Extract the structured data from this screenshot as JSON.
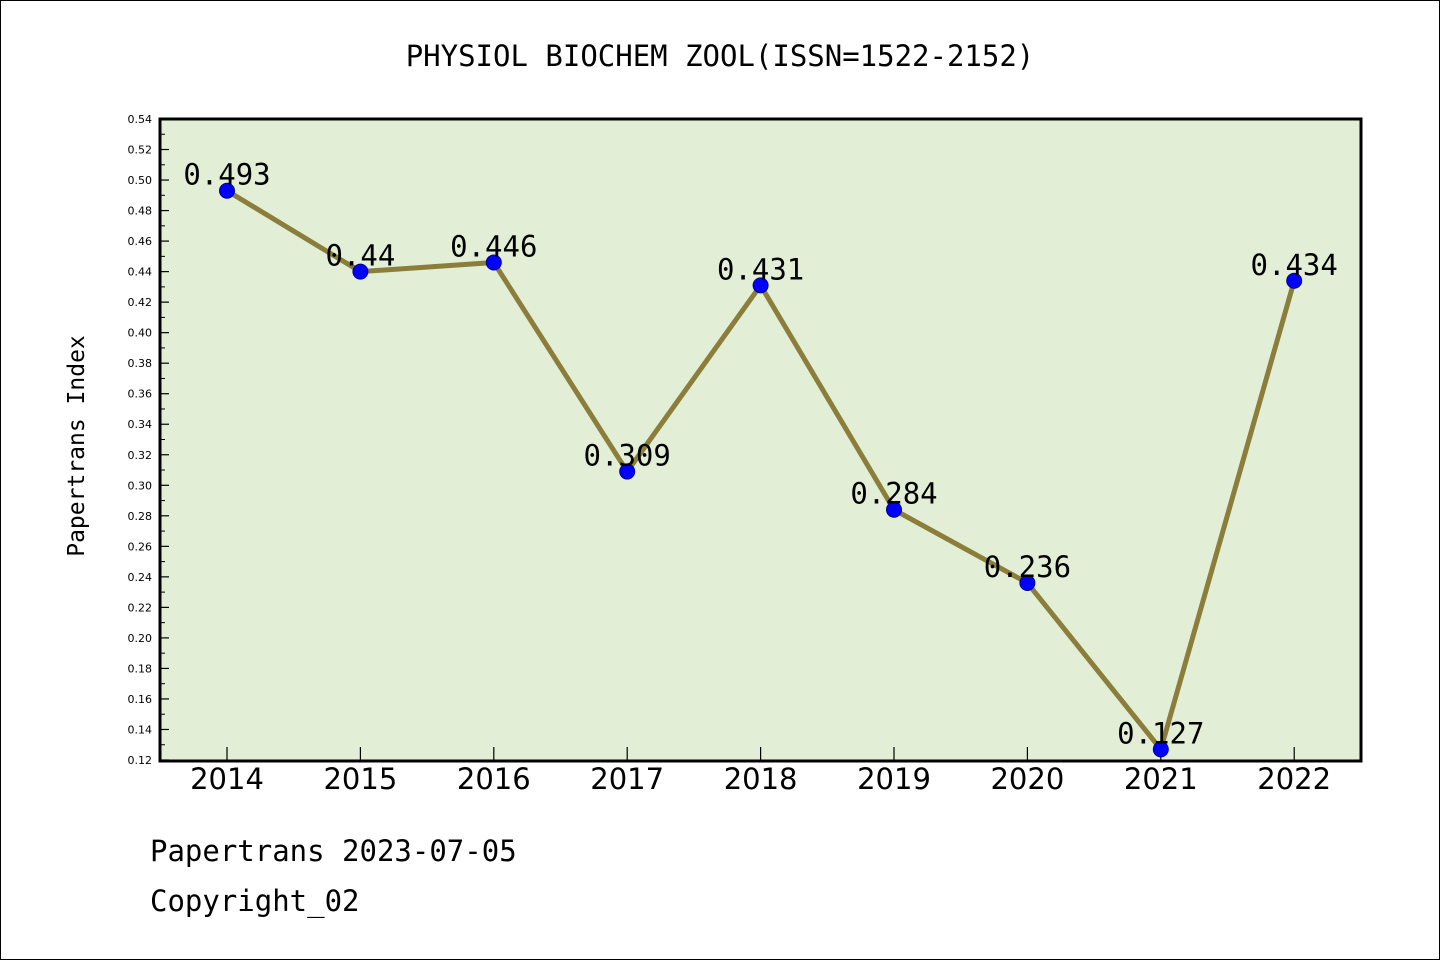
{
  "chart_data": {
    "type": "line",
    "title": "PHYSIOL BIOCHEM ZOOL(ISSN=1522-2152)",
    "xlabel": "",
    "ylabel": "Papertrans Index",
    "categories": [
      "2014",
      "2015",
      "2016",
      "2017",
      "2018",
      "2019",
      "2020",
      "2021",
      "2022"
    ],
    "values": [
      0.493,
      0.44,
      0.446,
      0.309,
      0.431,
      0.284,
      0.236,
      0.127,
      0.434
    ],
    "data_labels": [
      "0.493",
      "0.44",
      "0.446",
      "0.309",
      "0.431",
      "0.284",
      "0.236",
      "0.127",
      "0.434"
    ],
    "ylim": [
      0.12,
      0.54
    ],
    "yticks": [
      "0.12",
      "0.14",
      "0.16",
      "0.18",
      "0.20",
      "0.22",
      "0.24",
      "0.26",
      "0.28",
      "0.30",
      "0.32",
      "0.34",
      "0.36",
      "0.38",
      "0.40",
      "0.42",
      "0.44",
      "0.46",
      "0.48",
      "0.50",
      "0.52",
      "0.54"
    ],
    "grid": false,
    "legend": "none",
    "colors": {
      "plot_background": "#e2efd6",
      "line": "#8b7d3a",
      "marker": "#0000ff"
    }
  },
  "footer": {
    "line1": "Papertrans 2023-07-05",
    "line2": "Copyright_02"
  }
}
